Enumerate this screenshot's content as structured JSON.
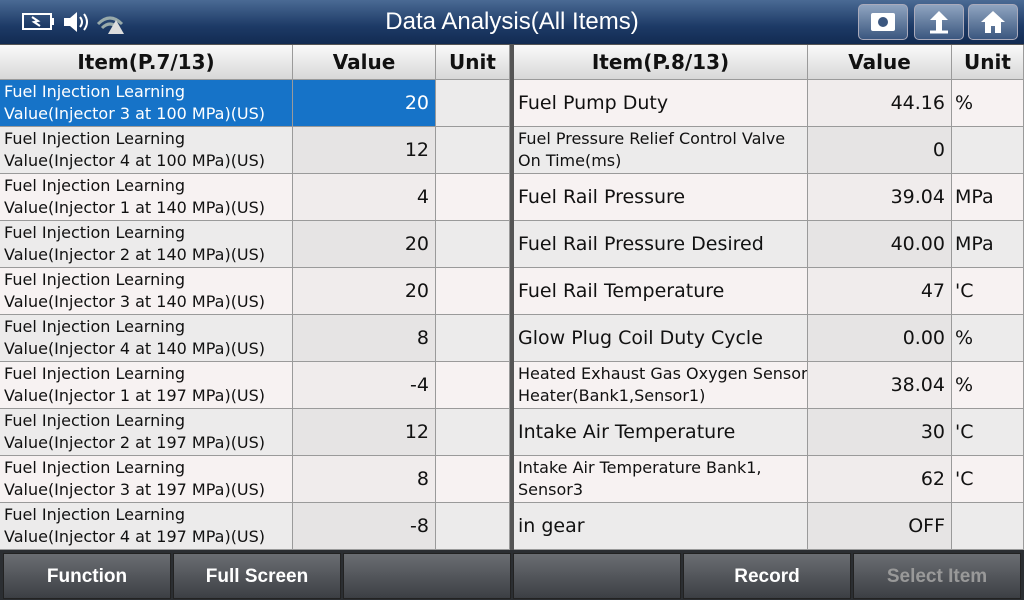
{
  "header": {
    "title": "Data Analysis(All Items)"
  },
  "left_table": {
    "columns": [
      "Item(P.7/13)",
      "Value",
      "Unit"
    ],
    "selected_row": 0,
    "rows": [
      {
        "item": [
          "Fuel Injection Learning",
          "Value(Injector 3 at 100 MPa)(US)"
        ],
        "value": "20"
      },
      {
        "item": [
          "Fuel Injection Learning",
          "Value(Injector 4 at 100 MPa)(US)"
        ],
        "value": "12"
      },
      {
        "item": [
          "Fuel Injection Learning",
          "Value(Injector 1 at 140 MPa)(US)"
        ],
        "value": "4"
      },
      {
        "item": [
          "Fuel Injection Learning",
          "Value(Injector 2 at 140 MPa)(US)"
        ],
        "value": "20"
      },
      {
        "item": [
          "Fuel Injection Learning",
          "Value(Injector 3 at 140 MPa)(US)"
        ],
        "value": "20"
      },
      {
        "item": [
          "Fuel Injection Learning",
          "Value(Injector 4 at 140 MPa)(US)"
        ],
        "value": "8"
      },
      {
        "item": [
          "Fuel Injection Learning",
          "Value(Injector 1 at 197 MPa)(US)"
        ],
        "value": "-4"
      },
      {
        "item": [
          "Fuel Injection Learning",
          "Value(Injector 2 at 197 MPa)(US)"
        ],
        "value": "12"
      },
      {
        "item": [
          "Fuel Injection Learning",
          "Value(Injector 3 at 197 MPa)(US)"
        ],
        "value": "8"
      },
      {
        "item": [
          "Fuel Injection Learning",
          "Value(Injector 4 at 197 MPa)(US)"
        ],
        "value": "-8"
      }
    ]
  },
  "right_table": {
    "columns": [
      "Item(P.8/13)",
      "Value",
      "Unit"
    ],
    "rows": [
      {
        "item": [
          "Fuel Pump Duty"
        ],
        "value": "44.16",
        "unit": "%"
      },
      {
        "item": [
          "Fuel Pressure Relief Control Valve",
          "On Time(ms)"
        ],
        "value": "0"
      },
      {
        "item": [
          "Fuel Rail Pressure"
        ],
        "value": "39.04",
        "unit": "MPa"
      },
      {
        "item": [
          "Fuel Rail Pressure Desired"
        ],
        "value": "40.00",
        "unit": "MPa"
      },
      {
        "item": [
          "Fuel Rail Temperature"
        ],
        "value": "47",
        "unit": "'C"
      },
      {
        "item": [
          "Glow Plug Coil Duty Cycle"
        ],
        "value": "0.00",
        "unit": "%"
      },
      {
        "item": [
          "Heated Exhaust Gas Oxygen Sensor",
          "Heater(Bank1,Sensor1)"
        ],
        "value": "38.04",
        "unit": "%"
      },
      {
        "item": [
          "Intake Air Temperature"
        ],
        "value": "30",
        "unit": "'C"
      },
      {
        "item": [
          "Intake Air Temperature Bank1,",
          "Sensor3"
        ],
        "value": "62",
        "unit": "'C"
      },
      {
        "item": [
          "in gear"
        ],
        "value": "OFF"
      }
    ]
  },
  "toolbar": {
    "buttons": [
      {
        "label": "Function"
      },
      {
        "label": "Full Screen"
      },
      {},
      {},
      {
        "label": "Record"
      },
      {
        "label": "Select Item",
        "disabled": true
      }
    ]
  }
}
